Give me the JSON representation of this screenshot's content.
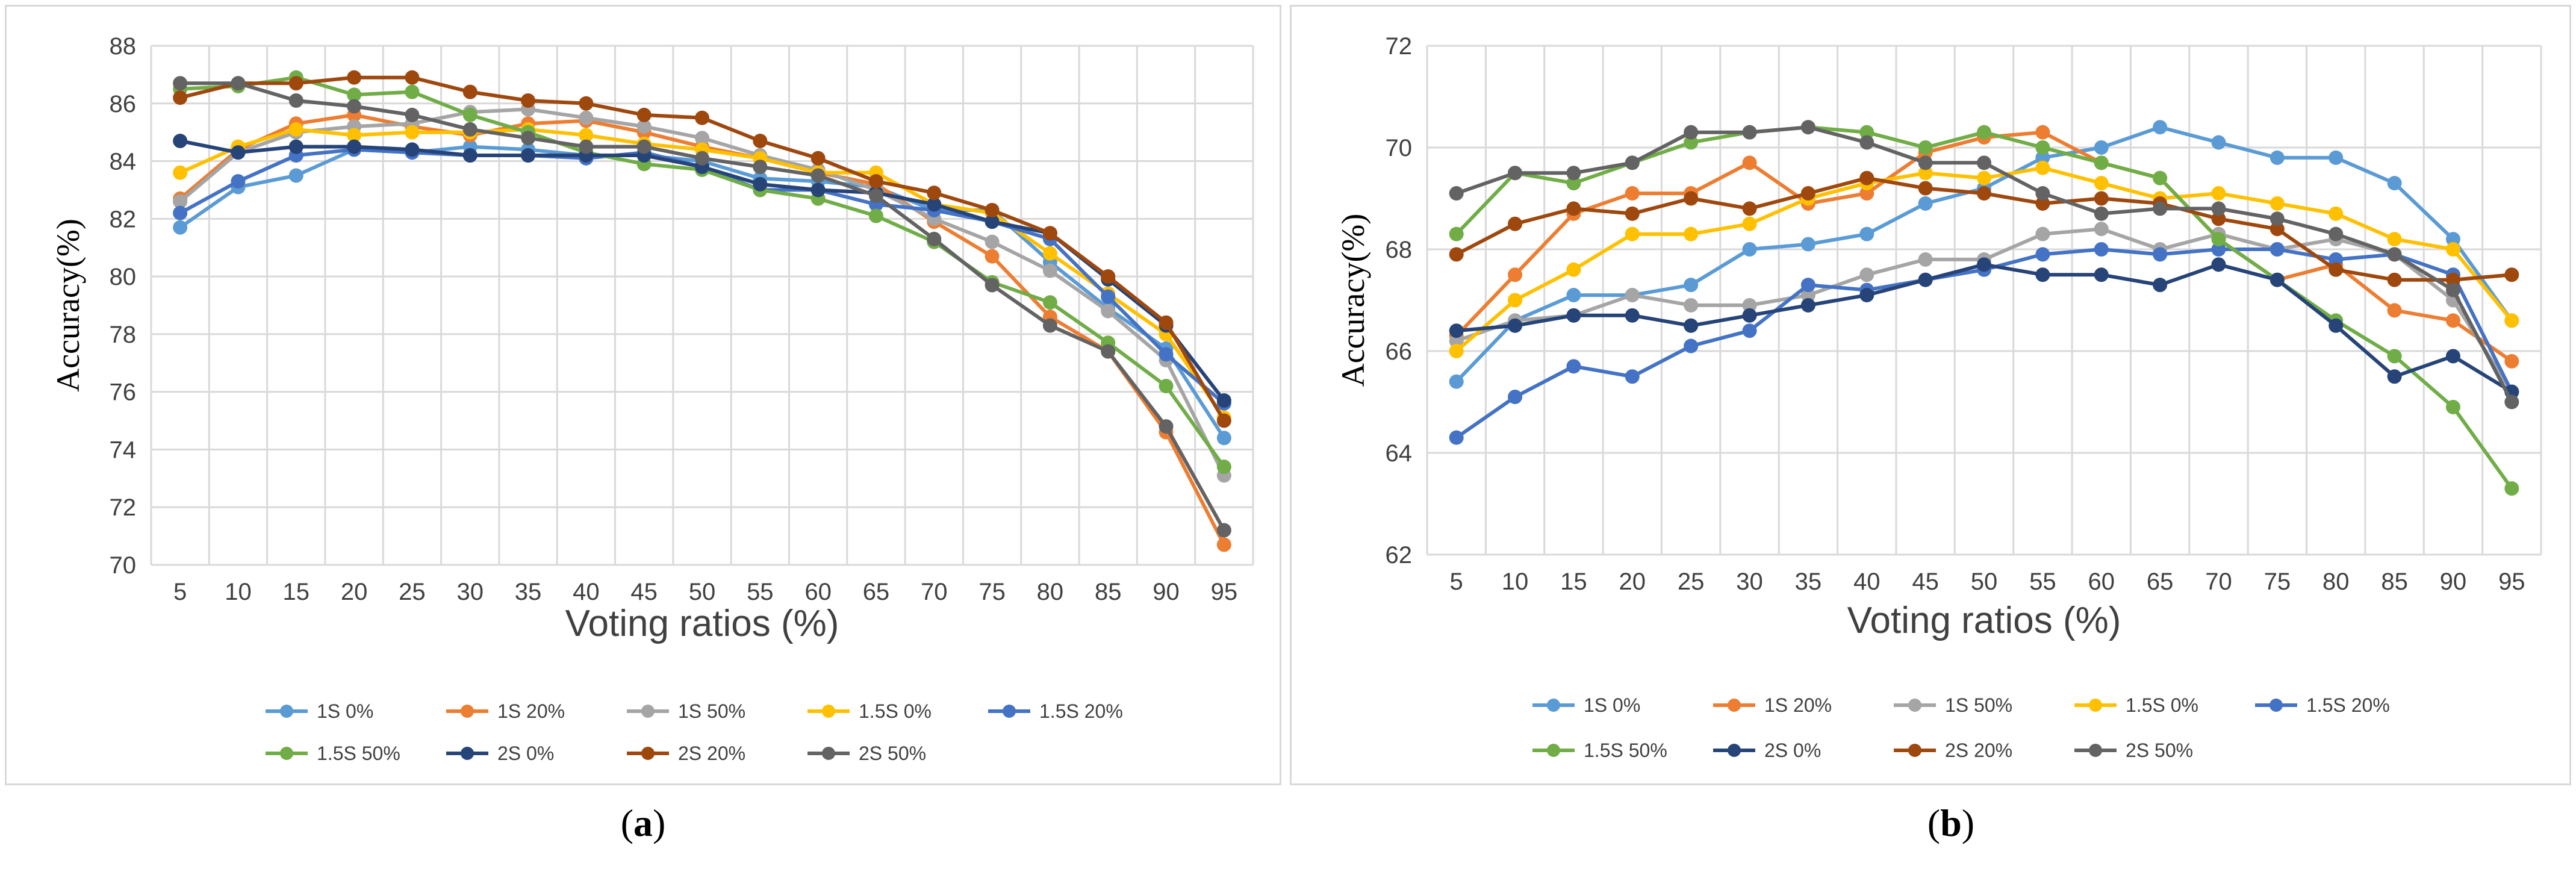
{
  "colors": {
    "1S 0%": "#5b9bd5",
    "1S 20%": "#ed7d31",
    "1S 50%": "#a5a5a5",
    "1.5S 0%": "#ffc000",
    "1.5S 20%": "#4472c4",
    "1.5S 50%": "#70ad47",
    "2S 0%": "#264478",
    "2S 20%": "#9e480e",
    "2S 50%": "#636363",
    "grid": "#d9d9d9"
  },
  "captions": {
    "a_open": "(",
    "a_letter": "a",
    "a_close": ")",
    "b_open": "(",
    "b_letter": "b",
    "b_close": ")"
  },
  "chart_data": [
    {
      "id": "a",
      "type": "line",
      "xlabel": "Voting ratios (%)",
      "ylabel": "Accuracy(%)",
      "ylim": [
        70,
        88
      ],
      "ystep": 2,
      "grid": true,
      "legend": "bottom",
      "categories": [
        "5",
        "10",
        "15",
        "20",
        "25",
        "30",
        "35",
        "40",
        "45",
        "50",
        "55",
        "60",
        "65",
        "70",
        "75",
        "80",
        "85",
        "90",
        "95"
      ],
      "series": [
        {
          "name": "1S 0%",
          "values": [
            81.7,
            83.1,
            83.5,
            84.4,
            84.3,
            84.5,
            84.4,
            84.2,
            84.2,
            84.0,
            83.4,
            83.3,
            83.1,
            82.3,
            82.3,
            80.5,
            78.9,
            77.5,
            74.4
          ]
        },
        {
          "name": "1S 20%",
          "values": [
            82.7,
            84.4,
            85.3,
            85.6,
            85.2,
            84.9,
            85.3,
            85.4,
            85.0,
            84.5,
            84.1,
            83.6,
            83.2,
            81.9,
            80.7,
            78.6,
            77.4,
            74.6,
            70.7
          ]
        },
        {
          "name": "1S 50%",
          "values": [
            82.6,
            84.3,
            85.0,
            85.2,
            85.3,
            85.7,
            85.8,
            85.5,
            85.2,
            84.8,
            84.2,
            83.7,
            83.0,
            82.0,
            81.2,
            80.2,
            78.8,
            77.1,
            73.1
          ]
        },
        {
          "name": "1.5S 0%",
          "values": [
            83.6,
            84.5,
            85.1,
            84.9,
            85.0,
            85.0,
            85.1,
            84.9,
            84.6,
            84.4,
            84.1,
            83.6,
            83.6,
            82.5,
            82.2,
            80.8,
            79.4,
            78.0,
            75.1
          ]
        },
        {
          "name": "1.5S 20%",
          "values": [
            82.2,
            83.3,
            84.2,
            84.4,
            84.3,
            84.2,
            84.2,
            84.1,
            84.3,
            83.8,
            83.0,
            83.0,
            82.5,
            82.3,
            81.9,
            81.3,
            79.3,
            77.3,
            75.6
          ]
        },
        {
          "name": "1.5S 50%",
          "values": [
            86.5,
            86.6,
            86.9,
            86.3,
            86.4,
            85.6,
            85.0,
            84.3,
            83.9,
            83.7,
            83.0,
            82.7,
            82.1,
            81.2,
            79.8,
            79.1,
            77.7,
            76.2,
            73.4
          ]
        },
        {
          "name": "2S 0%",
          "values": [
            84.7,
            84.3,
            84.5,
            84.5,
            84.4,
            84.2,
            84.2,
            84.2,
            84.2,
            83.8,
            83.2,
            83.0,
            82.9,
            82.5,
            81.9,
            81.5,
            79.9,
            78.3,
            75.7
          ]
        },
        {
          "name": "2S 20%",
          "values": [
            86.2,
            86.7,
            86.7,
            86.9,
            86.9,
            86.4,
            86.1,
            86.0,
            85.6,
            85.5,
            84.7,
            84.1,
            83.3,
            82.9,
            82.3,
            81.5,
            80.0,
            78.4,
            75.0
          ]
        },
        {
          "name": "2S 50%",
          "values": [
            86.7,
            86.7,
            86.1,
            85.9,
            85.6,
            85.1,
            84.8,
            84.5,
            84.5,
            84.1,
            83.8,
            83.5,
            82.8,
            81.3,
            79.7,
            78.3,
            77.4,
            74.8,
            71.2
          ]
        }
      ],
      "legend_rows": [
        [
          "1S 0%",
          "1S 20%",
          "1S 50%",
          "1.5S 0%",
          "1.5S 20%"
        ],
        [
          "1.5S 50%",
          "2S 0%",
          "2S 20%",
          "2S 50%"
        ]
      ]
    },
    {
      "id": "b",
      "type": "line",
      "xlabel": "Voting ratios (%)",
      "ylabel": "Accuracy(%)",
      "ylim": [
        62,
        72
      ],
      "ystep": 2,
      "grid": true,
      "legend": "bottom",
      "categories": [
        "5",
        "10",
        "15",
        "20",
        "25",
        "30",
        "35",
        "40",
        "45",
        "50",
        "55",
        "60",
        "65",
        "70",
        "75",
        "80",
        "85",
        "90",
        "95"
      ],
      "series": [
        {
          "name": "1S 0%",
          "values": [
            65.4,
            66.6,
            67.1,
            67.1,
            67.3,
            68.0,
            68.1,
            68.3,
            68.9,
            69.2,
            69.8,
            70.0,
            70.4,
            70.1,
            69.8,
            69.8,
            69.3,
            68.2,
            66.6
          ]
        },
        {
          "name": "1S 20%",
          "values": [
            66.3,
            67.5,
            68.7,
            69.1,
            69.1,
            69.7,
            68.9,
            69.1,
            69.9,
            70.2,
            70.3,
            69.7,
            69.4,
            68.2,
            67.4,
            67.7,
            66.8,
            66.6,
            65.8
          ]
        },
        {
          "name": "1S 50%",
          "values": [
            66.2,
            66.6,
            66.7,
            67.1,
            66.9,
            66.9,
            67.1,
            67.5,
            67.8,
            67.8,
            68.3,
            68.4,
            68.0,
            68.3,
            68.0,
            68.2,
            67.9,
            67.0,
            65.2
          ]
        },
        {
          "name": "1.5S 0%",
          "values": [
            66.0,
            67.0,
            67.6,
            68.3,
            68.3,
            68.5,
            69.0,
            69.3,
            69.5,
            69.4,
            69.6,
            69.3,
            69.0,
            69.1,
            68.9,
            68.7,
            68.2,
            68.0,
            66.6
          ]
        },
        {
          "name": "1.5S 20%",
          "values": [
            64.3,
            65.1,
            65.7,
            65.5,
            66.1,
            66.4,
            67.3,
            67.2,
            67.4,
            67.6,
            67.9,
            68.0,
            67.9,
            68.0,
            68.0,
            67.8,
            67.9,
            67.5,
            65.2
          ]
        },
        {
          "name": "1.5S 50%",
          "values": [
            68.3,
            69.5,
            69.3,
            69.7,
            70.1,
            70.3,
            70.4,
            70.3,
            70.0,
            70.3,
            70.0,
            69.7,
            69.4,
            68.2,
            67.4,
            66.6,
            65.9,
            64.9,
            63.3
          ]
        },
        {
          "name": "2S 0%",
          "values": [
            66.4,
            66.5,
            66.7,
            66.7,
            66.5,
            66.7,
            66.9,
            67.1,
            67.4,
            67.7,
            67.5,
            67.5,
            67.3,
            67.7,
            67.4,
            66.5,
            65.5,
            65.9,
            65.2
          ]
        },
        {
          "name": "2S 20%",
          "values": [
            67.9,
            68.5,
            68.8,
            68.7,
            69.0,
            68.8,
            69.1,
            69.4,
            69.2,
            69.1,
            68.9,
            69.0,
            68.9,
            68.6,
            68.4,
            67.6,
            67.4,
            67.4,
            67.5
          ]
        },
        {
          "name": "2S 50%",
          "values": [
            69.1,
            69.5,
            69.5,
            69.7,
            70.3,
            70.3,
            70.4,
            70.1,
            69.7,
            69.7,
            69.1,
            68.7,
            68.8,
            68.8,
            68.6,
            68.3,
            67.9,
            67.2,
            65.0
          ]
        }
      ],
      "legend_rows": [
        [
          "1S 0%",
          "1S 20%",
          "1S 50%",
          "1.5S 0%",
          "1.5S 20%"
        ],
        [
          "1.5S 50%",
          "2S 0%",
          "2S 20%",
          "2S 50%"
        ]
      ]
    }
  ]
}
